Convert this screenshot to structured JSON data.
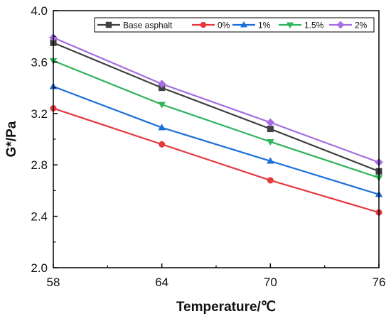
{
  "chart_data": {
    "type": "line",
    "title": "",
    "xlabel": "Temperature/℃",
    "ylabel": "G*/Pa",
    "x": [
      58,
      64,
      70,
      76
    ],
    "xlim": [
      58,
      76
    ],
    "ylim": [
      2.0,
      4.0
    ],
    "xticks": [
      "58",
      "64",
      "70",
      "76"
    ],
    "yticks": [
      "2.0",
      "2.4",
      "2.8",
      "3.2",
      "3.6",
      "4.0"
    ],
    "grid": false,
    "legend_position": "top",
    "series": [
      {
        "name": "Base asphalt",
        "color": "#404040",
        "marker": "square",
        "values": [
          3.75,
          3.4,
          3.08,
          2.75
        ]
      },
      {
        "name": "0%",
        "color": "#e6383f",
        "marker": "circle",
        "values": [
          3.24,
          2.96,
          2.68,
          2.43
        ]
      },
      {
        "name": "1%",
        "color": "#1c6fd9",
        "marker": "triangle-up",
        "values": [
          3.41,
          3.09,
          2.83,
          2.57
        ]
      },
      {
        "name": "1.5%",
        "color": "#2fb35c",
        "marker": "triangle-down",
        "values": [
          3.61,
          3.27,
          2.98,
          2.7
        ]
      },
      {
        "name": "2%",
        "color": "#a66ee0",
        "marker": "diamond",
        "values": [
          3.79,
          3.43,
          3.13,
          2.82
        ]
      }
    ]
  }
}
